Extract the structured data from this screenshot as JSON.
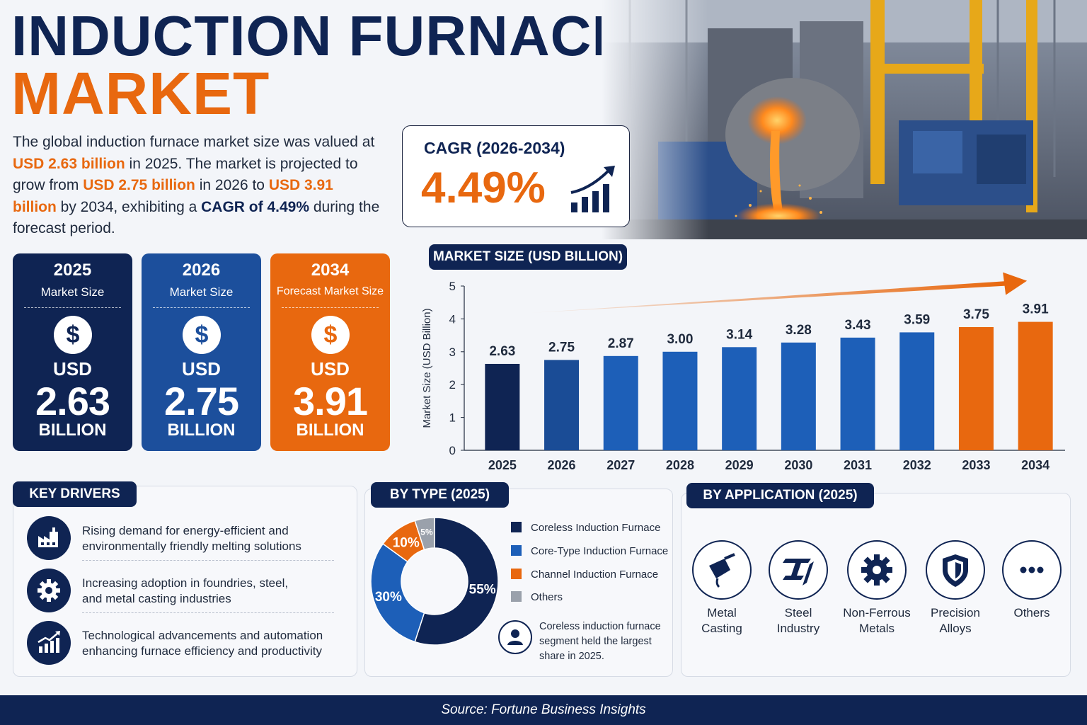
{
  "header": {
    "title_line1": "INDUCTION FURNACE",
    "title_line2": "MARKET"
  },
  "intro": {
    "p1": "The global induction furnace market size was valued at ",
    "v1": "USD 2.63 billion",
    "p2": " in 2025. The market is projected to grow from ",
    "v2": "USD 2.75 billion",
    "p3": " in 2026 to ",
    "v3": "USD 3.91 billion",
    "p4": " by 2034, exhibiting a ",
    "v4": "CAGR of 4.49%",
    "p5": " during the forecast period."
  },
  "cagr": {
    "label": "CAGR (2026-2034)",
    "value": "4.49%"
  },
  "cards": [
    {
      "year": "2025",
      "subtitle": "Market Size",
      "currency": "USD",
      "value": "2.63",
      "unit": "BILLION",
      "color": "#0f2453"
    },
    {
      "year": "2026",
      "subtitle": "Market Size",
      "currency": "USD",
      "value": "2.75",
      "unit": "BILLION",
      "color": "#1c4f9c"
    },
    {
      "year": "2034",
      "subtitle": "Forecast Market Size",
      "currency": "USD",
      "value": "3.91",
      "unit": "BILLION",
      "color": "#e8680f"
    }
  ],
  "chart_data": {
    "type": "bar",
    "title": "MARKET SIZE (USD BILLION)",
    "ylabel": "Market Size (USD Billion)",
    "xlabel": "",
    "ylim": [
      0,
      5
    ],
    "yticks": [
      0,
      1,
      2,
      3,
      4,
      5
    ],
    "categories": [
      "2025",
      "2026",
      "2027",
      "2028",
      "2029",
      "2030",
      "2031",
      "2032",
      "2033",
      "2034"
    ],
    "values": [
      2.63,
      2.75,
      2.87,
      3.0,
      3.14,
      3.28,
      3.43,
      3.59,
      3.75,
      3.91
    ],
    "labels": [
      "2.63",
      "2.75",
      "2.87",
      "3.00",
      "3.14",
      "3.28",
      "3.43",
      "3.59",
      "3.75",
      "3.91"
    ],
    "bar_colors": [
      "#0f2453",
      "#1a4c96",
      "#1d5fb8",
      "#1d5fb8",
      "#1d5fb8",
      "#1d5fb8",
      "#1d5fb8",
      "#1d5fb8",
      "#e8680f",
      "#e8680f"
    ],
    "trend_arrow_color": "#e8680f",
    "grid": false
  },
  "drivers": {
    "title": "KEY DRIVERS",
    "items": [
      {
        "line1": "Rising demand for energy-efficient and",
        "line2": "environmentally friendly melting solutions",
        "icon": "factory-icon"
      },
      {
        "line1": "Increasing adoption in foundries, steel,",
        "line2": "and metal casting industries",
        "icon": "gear-icon"
      },
      {
        "line1": "Technological advancements and automation",
        "line2": "enhancing furnace efficiency and productivity",
        "icon": "growth-chart-icon"
      }
    ]
  },
  "by_type": {
    "title": "BY TYPE (2025)",
    "chart_data": {
      "type": "pie",
      "categories": [
        "Coreless Induction Furnace",
        "Core-Type Induction Furnace",
        "Channel Induction Furnace",
        "Others"
      ],
      "values": [
        55,
        30,
        10,
        5
      ],
      "labels": [
        "55%",
        "30%",
        "10%",
        "5%"
      ],
      "colors": [
        "#0f2453",
        "#1d5fb8",
        "#e8680f",
        "#9aa1ab"
      ]
    },
    "note_line1": "Coreless induction furnace",
    "note_line2": "segment held the largest",
    "note_line3": "share in 2025."
  },
  "by_application": {
    "title": "BY APPLICATION (2025)",
    "items": [
      {
        "line1": "Metal",
        "line2": "Casting",
        "icon": "ladle-icon"
      },
      {
        "line1": "Steel",
        "line2": "Industry",
        "icon": "steel-beam-icon"
      },
      {
        "line1": "Non-Ferrous",
        "line2": "Metals",
        "icon": "gear-icon"
      },
      {
        "line1": "Precision",
        "line2": "Alloys",
        "icon": "shield-icon"
      },
      {
        "line1": "Others",
        "line2": "",
        "icon": "more-icon"
      }
    ]
  },
  "footer": {
    "source": "Source: Fortune Business Insights"
  }
}
